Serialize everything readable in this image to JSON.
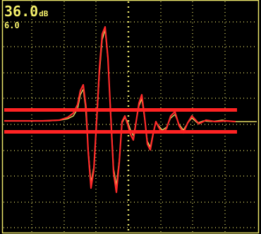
{
  "readout": {
    "gain": "36.0",
    "gain_unit": "dB",
    "step": "6.0"
  },
  "colors": {
    "background": "#000000",
    "frame": "#e9e46a",
    "grid": "#e9e46a",
    "text": "#f4ef6a",
    "waveform": "#e8dc62",
    "envelope": "#ff2a2a",
    "gate": "#ff2323"
  },
  "icons": {
    "frame": "screen-frame",
    "grid": "graticule-grid"
  }
}
